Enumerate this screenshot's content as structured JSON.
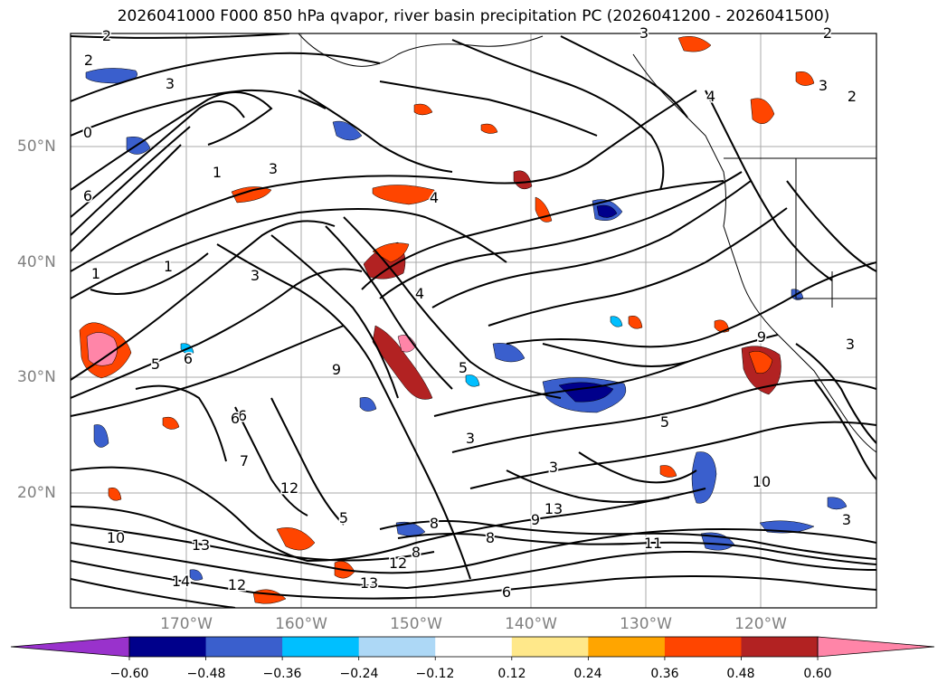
{
  "title": "2026041000 F000 850 hPa qvapor, river basin precipitation PC (2026041200 - 2026041500)",
  "map": {
    "lat_labels": [
      "50°N",
      "40°N",
      "30°N",
      "20°N"
    ],
    "lon_labels": [
      "170°W",
      "160°W",
      "150°W",
      "140°W",
      "130°W",
      "120°W"
    ],
    "contour_labels": [
      "2",
      "2",
      "3",
      "3",
      "2",
      "3",
      "2",
      "0",
      "6",
      "1",
      "1",
      "3",
      "4",
      "3",
      "5",
      "6",
      "9",
      "4",
      "5",
      "3",
      "9",
      "4",
      "5",
      "7",
      "6",
      "12",
      "5",
      "3",
      "6",
      "10",
      "13",
      "14",
      "12",
      "8",
      "13",
      "13",
      "12",
      "9",
      "6",
      "8",
      "11",
      "8",
      "10",
      "3",
      "3",
      "1"
    ],
    "extent": {
      "lon": [
        -180,
        -110
      ],
      "lat": [
        10,
        60
      ]
    },
    "grid": true,
    "colors": {
      "land_line": "#000000",
      "grid": "#aaaaaa"
    }
  },
  "colorbar": {
    "ticks": [
      "−0.60",
      "−0.48",
      "−0.36",
      "−0.24",
      "−0.12",
      "0.12",
      "0.24",
      "0.36",
      "0.48",
      "0.60"
    ],
    "colors": [
      "#9932cc",
      "#00008b",
      "#3a5fcd",
      "#00bfff",
      "#add8f6",
      "#ffffff",
      "#ffe88a",
      "#ffa500",
      "#ff4500",
      "#b22222",
      "#ff85a8"
    ]
  }
}
